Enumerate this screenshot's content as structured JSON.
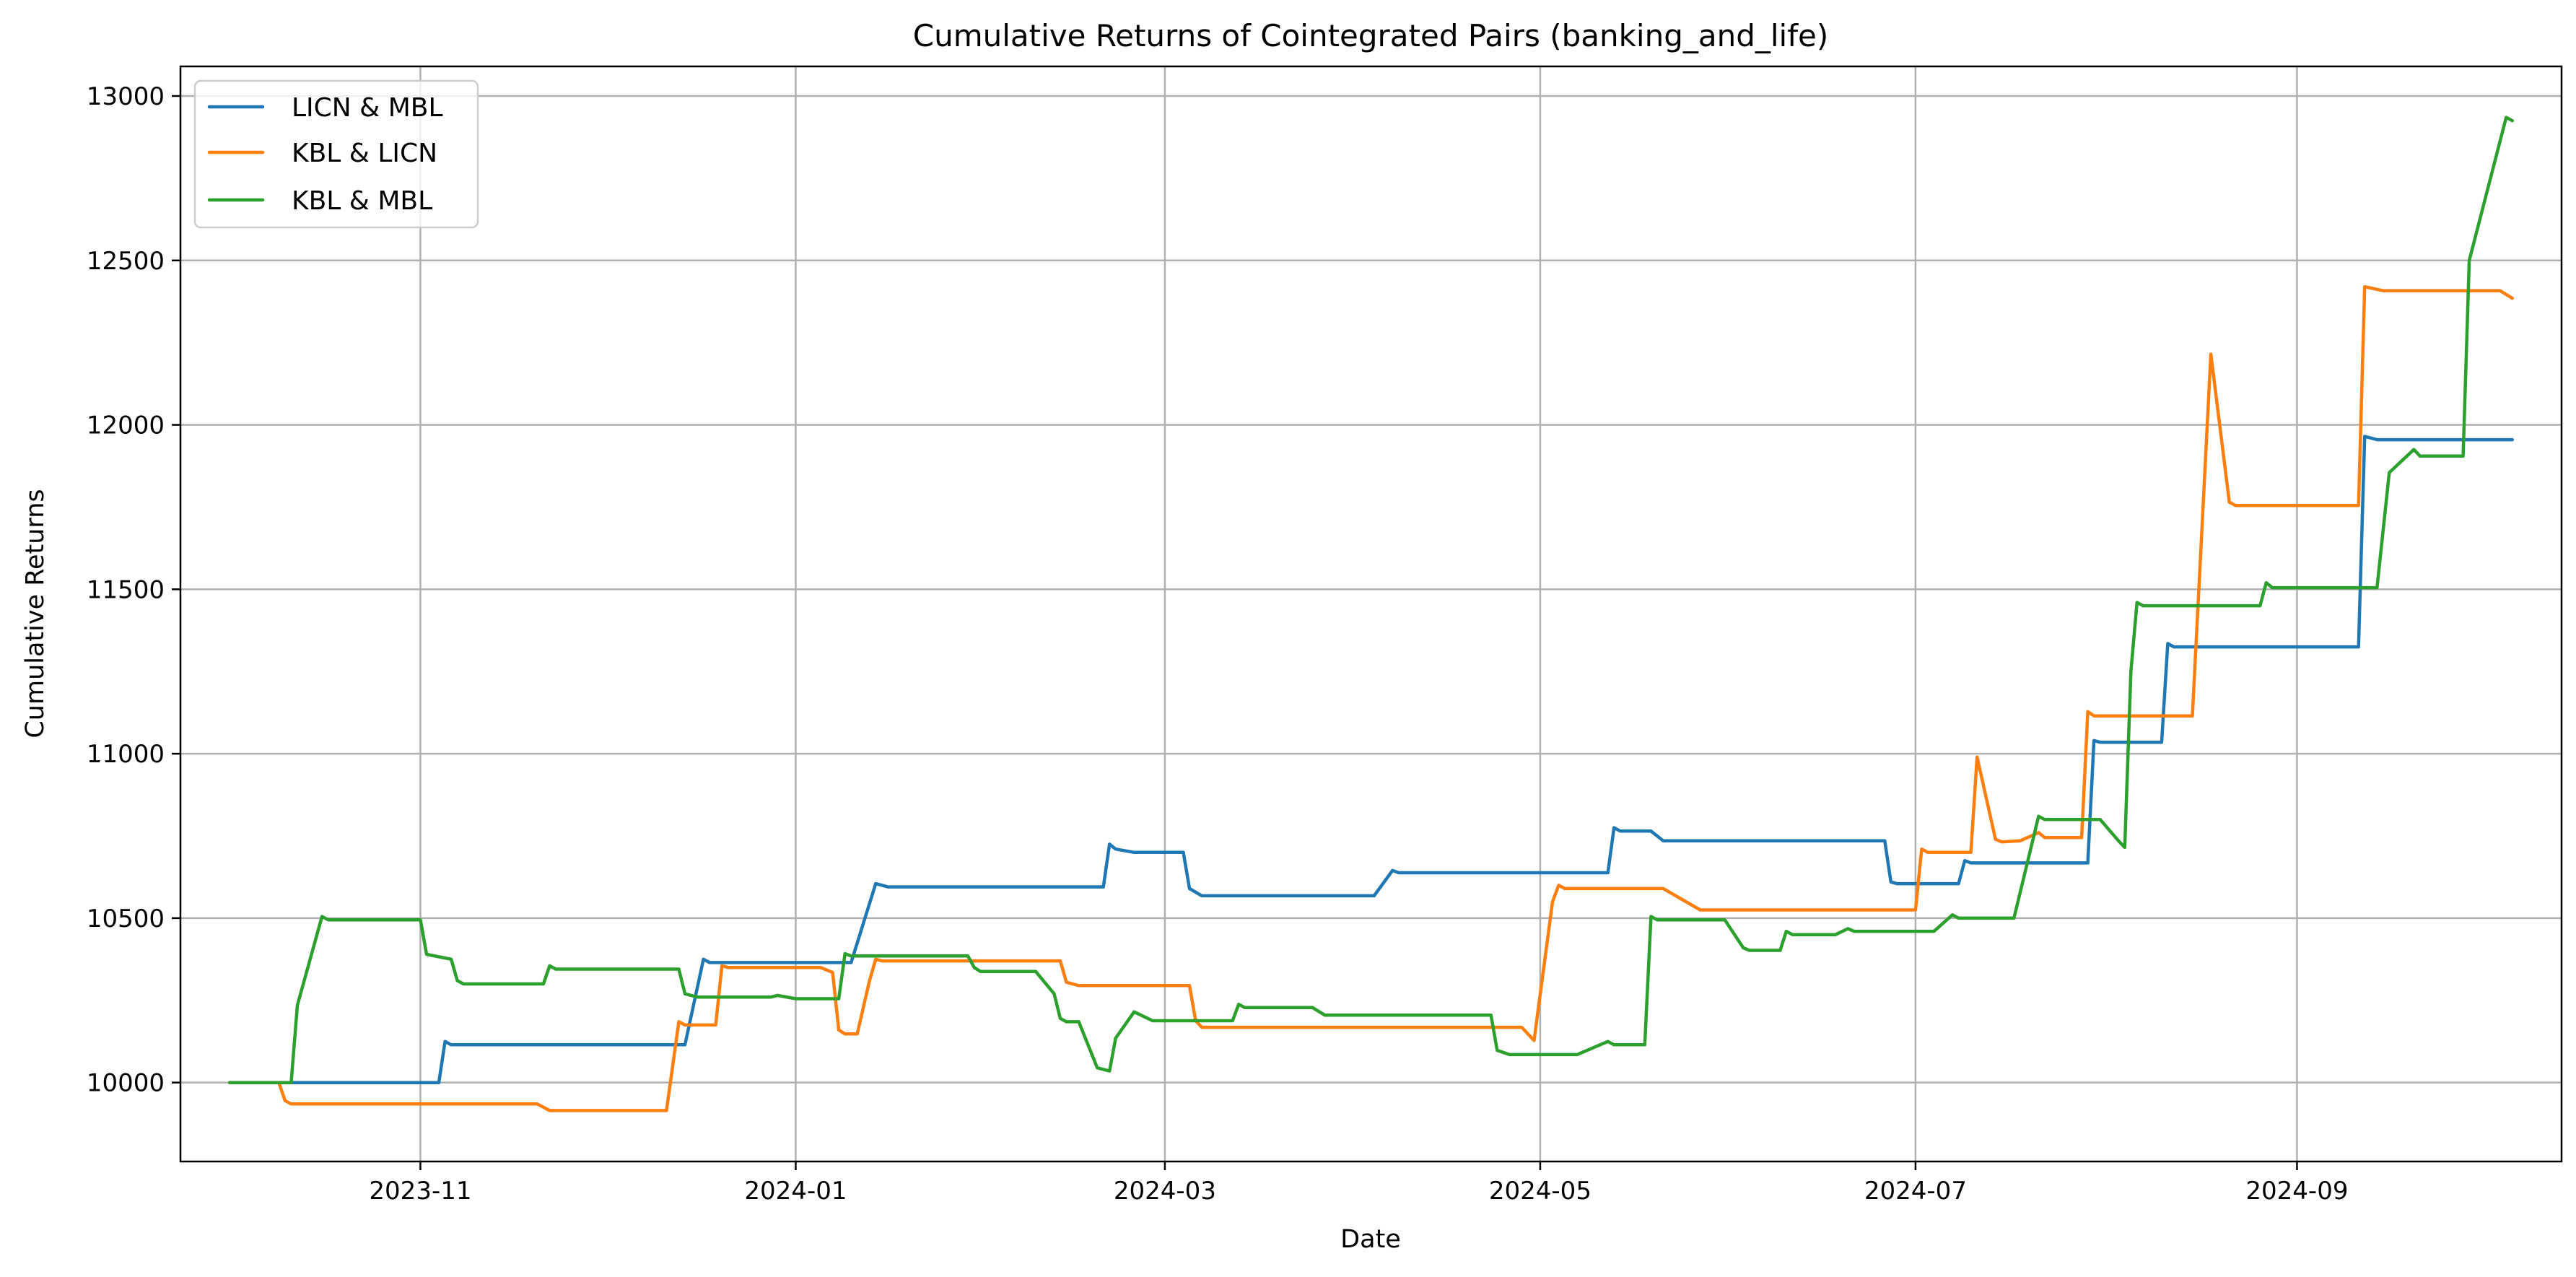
{
  "chart_data": {
    "type": "line",
    "title": "Cumulative Returns of Cointegrated Pairs (banking_and_life)",
    "xlabel": "Date",
    "ylabel": "Cumulative Returns",
    "xlim": [
      "2023-09-23",
      "2024-10-14"
    ],
    "ylim": [
      9760,
      13090
    ],
    "x_ticks": [
      "2023-11-01",
      "2024-01-01",
      "2024-03-01",
      "2024-05-01",
      "2024-07-01",
      "2024-09-01"
    ],
    "x_tick_labels": [
      "2023-11",
      "2024-01",
      "2024-03",
      "2024-05",
      "2024-07",
      "2024-09"
    ],
    "y_ticks": [
      10000,
      10500,
      11000,
      11500,
      12000,
      12500,
      13000
    ],
    "y_tick_labels": [
      "10000",
      "10500",
      "11000",
      "11500",
      "12000",
      "12500",
      "13000"
    ],
    "grid": true,
    "legend_position": "upper left",
    "series": [
      {
        "name": "LICN & MBL",
        "color": "#1f77b4",
        "points": [
          [
            "2023-10-01",
            10000
          ],
          [
            "2023-11-04",
            10000
          ],
          [
            "2023-11-05",
            10125
          ],
          [
            "2023-11-06",
            10115
          ],
          [
            "2023-12-14",
            10115
          ],
          [
            "2023-12-17",
            10375
          ],
          [
            "2023-12-18",
            10365
          ],
          [
            "2024-01-10",
            10365
          ],
          [
            "2024-01-14",
            10605
          ],
          [
            "2024-01-16",
            10595
          ],
          [
            "2024-02-20",
            10595
          ],
          [
            "2024-02-21",
            10725
          ],
          [
            "2024-02-22",
            10710
          ],
          [
            "2024-02-25",
            10700
          ],
          [
            "2024-03-04",
            10700
          ],
          [
            "2024-03-05",
            10590
          ],
          [
            "2024-03-07",
            10568
          ],
          [
            "2024-04-04",
            10568
          ],
          [
            "2024-04-07",
            10645
          ],
          [
            "2024-04-08",
            10638
          ],
          [
            "2024-05-12",
            10638
          ],
          [
            "2024-05-13",
            10775
          ],
          [
            "2024-05-14",
            10765
          ],
          [
            "2024-05-19",
            10765
          ],
          [
            "2024-05-21",
            10735
          ],
          [
            "2024-06-26",
            10735
          ],
          [
            "2024-06-27",
            10610
          ],
          [
            "2024-06-28",
            10605
          ],
          [
            "2024-07-08",
            10605
          ],
          [
            "2024-07-09",
            10675
          ],
          [
            "2024-07-10",
            10668
          ],
          [
            "2024-07-29",
            10668
          ],
          [
            "2024-07-30",
            11040
          ],
          [
            "2024-07-31",
            11035
          ],
          [
            "2024-08-10",
            11035
          ],
          [
            "2024-08-11",
            11335
          ],
          [
            "2024-08-12",
            11325
          ],
          [
            "2024-09-11",
            11325
          ],
          [
            "2024-09-12",
            11965
          ],
          [
            "2024-09-14",
            11955
          ],
          [
            "2024-10-06",
            11955
          ]
        ]
      },
      {
        "name": "KBL & LICN",
        "color": "#ff7f0e",
        "points": [
          [
            "2023-10-01",
            10000
          ],
          [
            "2023-10-09",
            10000
          ],
          [
            "2023-10-10",
            9945
          ],
          [
            "2023-10-11",
            9935
          ],
          [
            "2023-11-20",
            9935
          ],
          [
            "2023-11-22",
            9915
          ],
          [
            "2023-12-11",
            9915
          ],
          [
            "2023-12-13",
            10185
          ],
          [
            "2023-12-14",
            10175
          ],
          [
            "2023-12-19",
            10175
          ],
          [
            "2023-12-20",
            10355
          ],
          [
            "2023-12-21",
            10350
          ],
          [
            "2024-01-05",
            10350
          ],
          [
            "2024-01-07",
            10335
          ],
          [
            "2024-01-08",
            10160
          ],
          [
            "2024-01-09",
            10148
          ],
          [
            "2024-01-11",
            10148
          ],
          [
            "2024-01-13",
            10310
          ],
          [
            "2024-01-14",
            10375
          ],
          [
            "2024-01-15",
            10370
          ],
          [
            "2024-02-13",
            10370
          ],
          [
            "2024-02-14",
            10305
          ],
          [
            "2024-02-16",
            10295
          ],
          [
            "2024-03-05",
            10295
          ],
          [
            "2024-03-06",
            10188
          ],
          [
            "2024-03-07",
            10168
          ],
          [
            "2024-04-28",
            10168
          ],
          [
            "2024-04-30",
            10128
          ],
          [
            "2024-05-03",
            10550
          ],
          [
            "2024-05-04",
            10600
          ],
          [
            "2024-05-05",
            10590
          ],
          [
            "2024-05-21",
            10590
          ],
          [
            "2024-05-27",
            10525
          ],
          [
            "2024-07-01",
            10525
          ],
          [
            "2024-07-02",
            10710
          ],
          [
            "2024-07-03",
            10700
          ],
          [
            "2024-07-10",
            10700
          ],
          [
            "2024-07-11",
            10990
          ],
          [
            "2024-07-14",
            10740
          ],
          [
            "2024-07-15",
            10732
          ],
          [
            "2024-07-18",
            10735
          ],
          [
            "2024-07-21",
            10760
          ],
          [
            "2024-07-22",
            10745
          ],
          [
            "2024-07-28",
            10745
          ],
          [
            "2024-07-29",
            11128
          ],
          [
            "2024-07-30",
            11115
          ],
          [
            "2024-08-15",
            11115
          ],
          [
            "2024-08-18",
            12215
          ],
          [
            "2024-08-21",
            11765
          ],
          [
            "2024-08-22",
            11755
          ],
          [
            "2024-09-11",
            11755
          ],
          [
            "2024-09-12",
            12420
          ],
          [
            "2024-09-15",
            12408
          ],
          [
            "2024-10-04",
            12408
          ],
          [
            "2024-10-06",
            12385
          ]
        ]
      },
      {
        "name": "KBL & MBL",
        "color": "#2ca02c",
        "points": [
          [
            "2023-10-01",
            10000
          ],
          [
            "2023-10-11",
            10000
          ],
          [
            "2023-10-12",
            10235
          ],
          [
            "2023-10-16",
            10505
          ],
          [
            "2023-10-17",
            10495
          ],
          [
            "2023-11-01",
            10495
          ],
          [
            "2023-11-02",
            10390
          ],
          [
            "2023-11-06",
            10375
          ],
          [
            "2023-11-07",
            10310
          ],
          [
            "2023-11-08",
            10300
          ],
          [
            "2023-11-21",
            10300
          ],
          [
            "2023-11-22",
            10355
          ],
          [
            "2023-11-23",
            10345
          ],
          [
            "2023-12-13",
            10345
          ],
          [
            "2023-12-14",
            10270
          ],
          [
            "2023-12-16",
            10260
          ],
          [
            "2023-12-28",
            10260
          ],
          [
            "2023-12-29",
            10265
          ],
          [
            "2024-01-01",
            10255
          ],
          [
            "2024-01-08",
            10255
          ],
          [
            "2024-01-09",
            10392
          ],
          [
            "2024-01-10",
            10385
          ],
          [
            "2024-01-29",
            10385
          ],
          [
            "2024-01-30",
            10350
          ],
          [
            "2024-01-31",
            10338
          ],
          [
            "2024-02-09",
            10338
          ],
          [
            "2024-02-12",
            10270
          ],
          [
            "2024-02-13",
            10195
          ],
          [
            "2024-02-14",
            10185
          ],
          [
            "2024-02-16",
            10185
          ],
          [
            "2024-02-19",
            10045
          ],
          [
            "2024-02-21",
            10035
          ],
          [
            "2024-02-22",
            10135
          ],
          [
            "2024-02-25",
            10215
          ],
          [
            "2024-02-28",
            10188
          ],
          [
            "2024-03-12",
            10188
          ],
          [
            "2024-03-13",
            10238
          ],
          [
            "2024-03-14",
            10228
          ],
          [
            "2024-03-25",
            10228
          ],
          [
            "2024-03-27",
            10205
          ],
          [
            "2024-04-23",
            10205
          ],
          [
            "2024-04-24",
            10098
          ],
          [
            "2024-04-26",
            10085
          ],
          [
            "2024-05-07",
            10085
          ],
          [
            "2024-05-12",
            10125
          ],
          [
            "2024-05-13",
            10115
          ],
          [
            "2024-05-18",
            10115
          ],
          [
            "2024-05-19",
            10505
          ],
          [
            "2024-05-20",
            10495
          ],
          [
            "2024-05-31",
            10495
          ],
          [
            "2024-06-03",
            10410
          ],
          [
            "2024-06-04",
            10402
          ],
          [
            "2024-06-09",
            10402
          ],
          [
            "2024-06-10",
            10460
          ],
          [
            "2024-06-11",
            10450
          ],
          [
            "2024-06-18",
            10450
          ],
          [
            "2024-06-20",
            10468
          ],
          [
            "2024-06-21",
            10460
          ],
          [
            "2024-07-04",
            10460
          ],
          [
            "2024-07-07",
            10510
          ],
          [
            "2024-07-08",
            10500
          ],
          [
            "2024-07-17",
            10500
          ],
          [
            "2024-07-21",
            10810
          ],
          [
            "2024-07-22",
            10800
          ],
          [
            "2024-07-31",
            10800
          ],
          [
            "2024-08-03",
            10735
          ],
          [
            "2024-08-04",
            10715
          ],
          [
            "2024-08-05",
            11250
          ],
          [
            "2024-08-06",
            11460
          ],
          [
            "2024-08-07",
            11450
          ],
          [
            "2024-08-26",
            11450
          ],
          [
            "2024-08-27",
            11520
          ],
          [
            "2024-08-28",
            11505
          ],
          [
            "2024-09-14",
            11505
          ],
          [
            "2024-09-16",
            11855
          ],
          [
            "2024-09-20",
            11925
          ],
          [
            "2024-09-21",
            11905
          ],
          [
            "2024-09-28",
            11905
          ],
          [
            "2024-09-29",
            12500
          ],
          [
            "2024-10-05",
            12935
          ],
          [
            "2024-10-06",
            12925
          ]
        ]
      }
    ]
  }
}
